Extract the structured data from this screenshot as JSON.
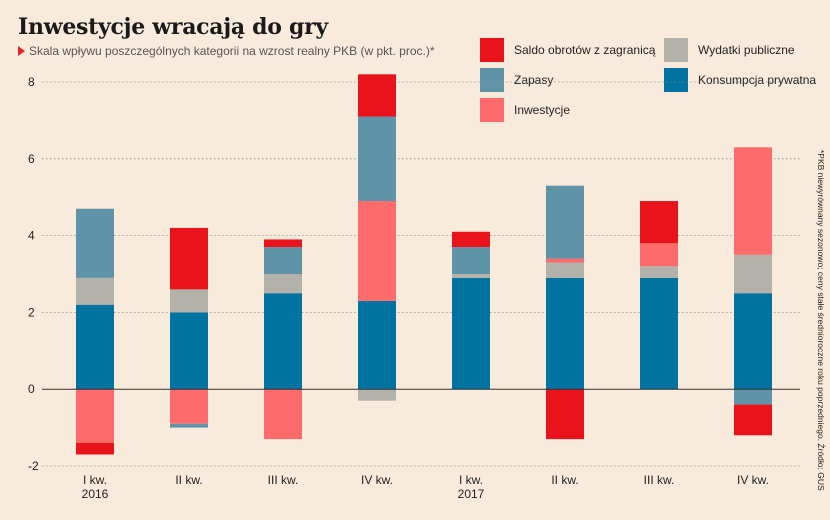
{
  "title": "Inwestycje wracają do gry",
  "subtitle": "Skala wpływu poszczególnych kategorii na wzrost realny PKB (w pkt. proc.)*",
  "side_note": "*PKB niewyrównany sezonowo; ceny stałe średnioroczne roku poprzedniego. Źródło: GUS",
  "colors": {
    "background": "#f9ebdb",
    "konsumpcja": "#0073a0",
    "wydatki": "#b3b2aa",
    "inwestycje": "#ff6b6b",
    "zapasy": "#5f93a8",
    "saldo": "#e9141b",
    "accent": "#e4262b"
  },
  "legend": [
    {
      "key": "saldo",
      "label": "Saldo obrotów z zagranicą"
    },
    {
      "key": "wydatki",
      "label": "Wydatki publiczne"
    },
    {
      "key": "zapasy",
      "label": "Zapasy"
    },
    {
      "key": "konsumpcja",
      "label": "Konsumpcja prywatna"
    },
    {
      "key": "inwestycje",
      "label": "Inwestycje"
    }
  ],
  "chart_data": {
    "type": "bar",
    "stacked": true,
    "title": "Inwestycje wracają do gry",
    "subtitle": "Skala wpływu poszczególnych kategorii na wzrost realny PKB (w pkt. proc.)*",
    "xlabel": "",
    "ylabel": "",
    "ylim": [
      -2,
      8
    ],
    "yticks": [
      -2,
      0,
      2,
      4,
      6,
      8
    ],
    "grid": true,
    "legend_position": "top-right",
    "categories": [
      [
        "I kw.",
        "2016"
      ],
      [
        "II kw.",
        ""
      ],
      [
        "III kw.",
        ""
      ],
      [
        "IV kw.",
        ""
      ],
      [
        "I kw.",
        "2017"
      ],
      [
        "II kw.",
        ""
      ],
      [
        "III kw.",
        ""
      ],
      [
        "IV kw.",
        ""
      ]
    ],
    "series": [
      {
        "key": "konsumpcja",
        "name": "Konsumpcja prywatna",
        "values": [
          2.2,
          2.0,
          2.5,
          2.3,
          2.9,
          2.9,
          2.9,
          2.5
        ]
      },
      {
        "key": "wydatki",
        "name": "Wydatki publiczne",
        "values": [
          0.7,
          0.6,
          0.5,
          -0.3,
          0.1,
          0.4,
          0.3,
          1.0
        ]
      },
      {
        "key": "inwestycje",
        "name": "Inwestycje",
        "values": [
          -1.4,
          -0.9,
          -1.3,
          2.6,
          0.0,
          0.1,
          0.6,
          2.8
        ]
      },
      {
        "key": "zapasy",
        "name": "Zapasy",
        "values": [
          1.8,
          -0.1,
          0.7,
          2.2,
          0.7,
          1.9,
          0.0,
          -0.4
        ]
      },
      {
        "key": "saldo",
        "name": "Saldo obrotów z zagranicą",
        "values": [
          -0.3,
          1.6,
          0.2,
          1.1,
          0.4,
          -1.3,
          1.1,
          -0.8
        ]
      }
    ]
  }
}
